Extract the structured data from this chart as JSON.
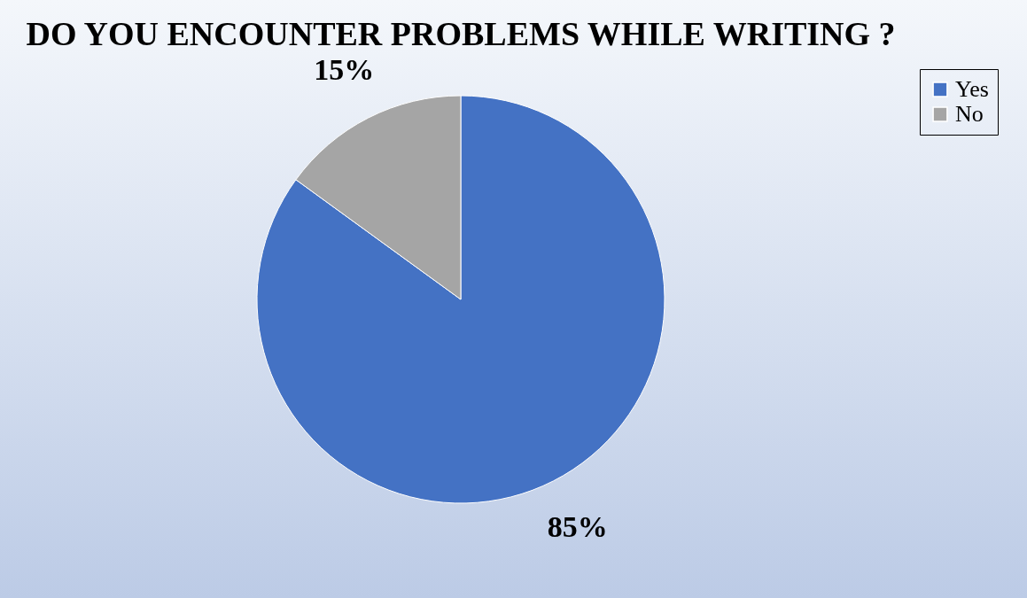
{
  "chart_data": {
    "type": "pie",
    "title": "DO YOU ENCOUNTER PROBLEMS WHILE WRITING ?",
    "categories": [
      "Yes",
      "No"
    ],
    "values": [
      85,
      15
    ],
    "colors": [
      "#4472c4",
      "#a5a5a5"
    ],
    "value_labels": [
      "85%",
      "15%"
    ],
    "legend": "right"
  }
}
